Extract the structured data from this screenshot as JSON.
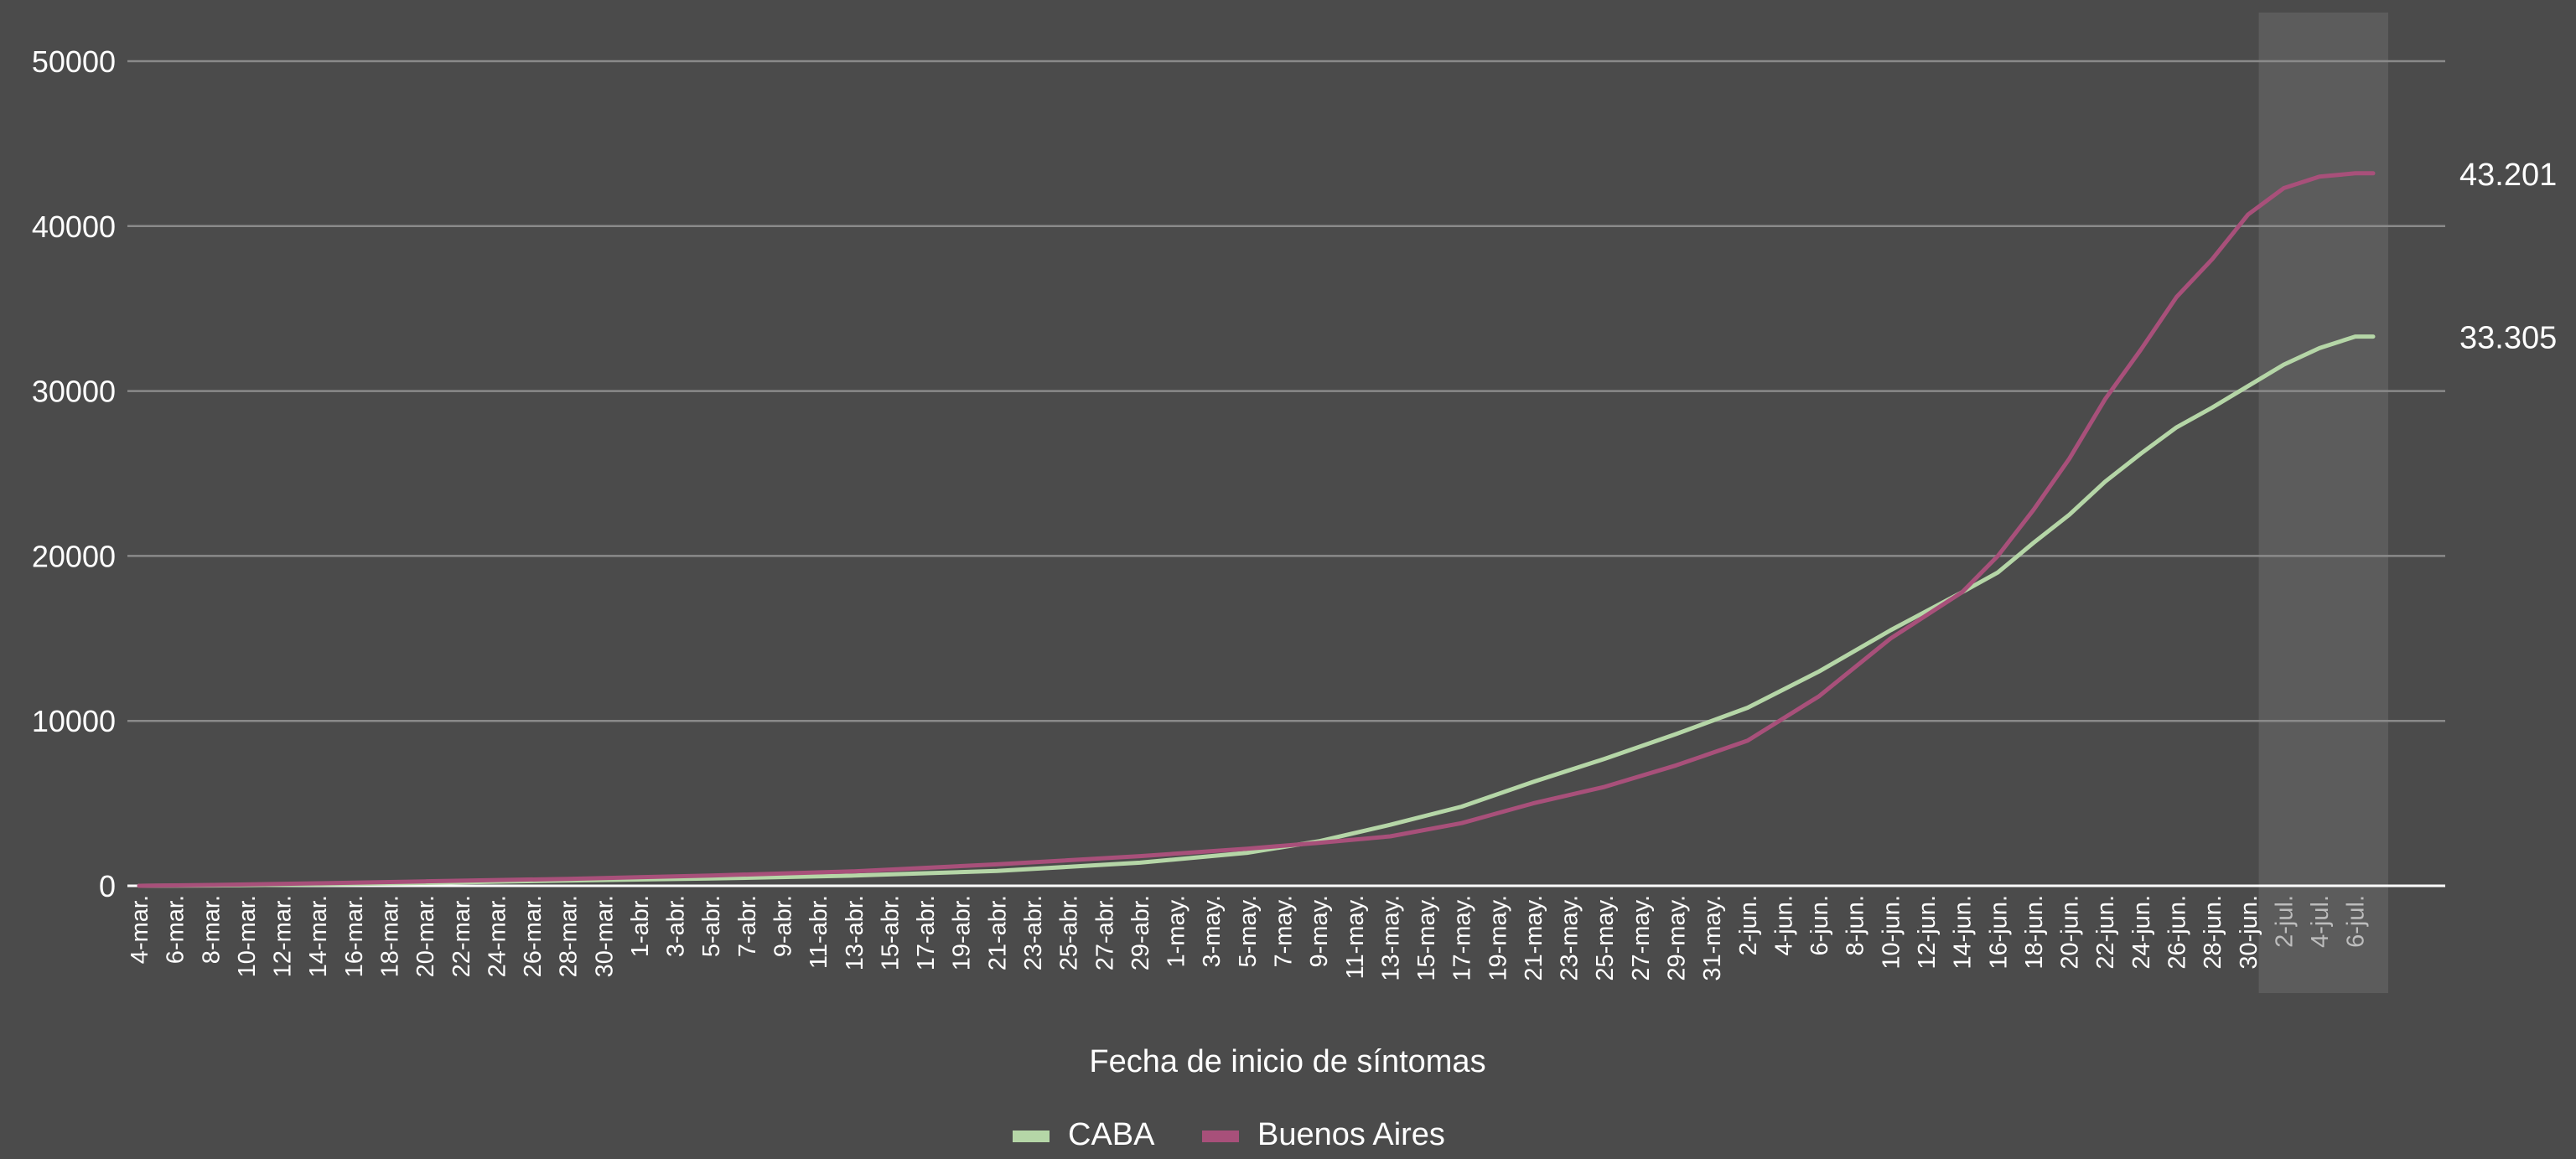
{
  "chart_data": {
    "type": "line",
    "title": "",
    "xlabel": "Fecha de inicio de síntomas",
    "ylabel": "",
    "ylim": [
      0,
      50000
    ],
    "yticks": [
      0,
      10000,
      20000,
      30000,
      40000,
      50000
    ],
    "grid": true,
    "legend_position": "bottom",
    "x_tick_labels": [
      "4-mar.",
      "6-mar.",
      "8-mar.",
      "10-mar.",
      "12-mar.",
      "14-mar.",
      "16-mar.",
      "18-mar.",
      "20-mar.",
      "22-mar.",
      "24-mar.",
      "26-mar.",
      "28-mar.",
      "30-mar.",
      "1-abr.",
      "3-abr.",
      "5-abr.",
      "7-abr.",
      "9-abr.",
      "11-abr.",
      "13-abr.",
      "15-abr.",
      "17-abr.",
      "19-abr.",
      "21-abr.",
      "23-abr.",
      "25-abr.",
      "27-abr.",
      "29-abr.",
      "1-may.",
      "3-may.",
      "5-may.",
      "7-may.",
      "9-may.",
      "11-may.",
      "13-may.",
      "15-may.",
      "17-may.",
      "19-may.",
      "21-may.",
      "23-may.",
      "25-may.",
      "27-may.",
      "29-may.",
      "31-may.",
      "2-jun.",
      "4-jun.",
      "6-jun.",
      "8-jun.",
      "10-jun.",
      "12-jun.",
      "14-jun.",
      "16-jun.",
      "18-jun.",
      "20-jun.",
      "22-jun.",
      "24-jun.",
      "26-jun.",
      "28-jun.",
      "30-jun.",
      "2-jul.",
      "4-jul.",
      "6-jul."
    ],
    "shaded_tick_labels": [
      "2-jul.",
      "4-jul.",
      "6-jul."
    ],
    "shaded_region": [
      "1-jul.",
      "7-jul."
    ],
    "x": [
      "4-mar.",
      "8-mar.",
      "14-mar.",
      "20-mar.",
      "28-mar.",
      "5-abr.",
      "13-abr.",
      "21-abr.",
      "29-abr.",
      "5-may.",
      "9-may.",
      "13-may.",
      "17-may.",
      "21-may.",
      "25-may.",
      "29-may.",
      "2-jun.",
      "6-jun.",
      "10-jun.",
      "14-jun.",
      "16-jun.",
      "18-jun.",
      "20-jun.",
      "22-jun.",
      "24-jun.",
      "26-jun.",
      "28-jun.",
      "30-jun.",
      "2-jul.",
      "4-jul.",
      "6-jul.",
      "7-jul."
    ],
    "series": [
      {
        "name": "CABA",
        "color": "#b5d6a7",
        "values": [
          0,
          20,
          80,
          180,
          320,
          440,
          620,
          900,
          1400,
          2000,
          2700,
          3700,
          4800,
          6300,
          7700,
          9200,
          10800,
          13000,
          15500,
          17800,
          19000,
          20800,
          22500,
          24500,
          26200,
          27800,
          29000,
          30300,
          31600,
          32600,
          33305,
          33305
        ],
        "end_label": "33.305"
      },
      {
        "name": "Buenos Aires",
        "color": "#a8507a",
        "values": [
          0,
          50,
          150,
          270,
          420,
          620,
          880,
          1300,
          1800,
          2250,
          2600,
          3000,
          3800,
          5000,
          6000,
          7300,
          8800,
          11500,
          15000,
          17800,
          20000,
          22800,
          25900,
          29500,
          32500,
          35700,
          38000,
          40700,
          42300,
          43000,
          43201,
          43201
        ],
        "end_label": "43.201"
      }
    ]
  },
  "colors": {
    "background": "#4b4b4b",
    "shaded_region": "#5c5c5c",
    "text": "#ffffff",
    "grid": "#8a8a8a"
  }
}
